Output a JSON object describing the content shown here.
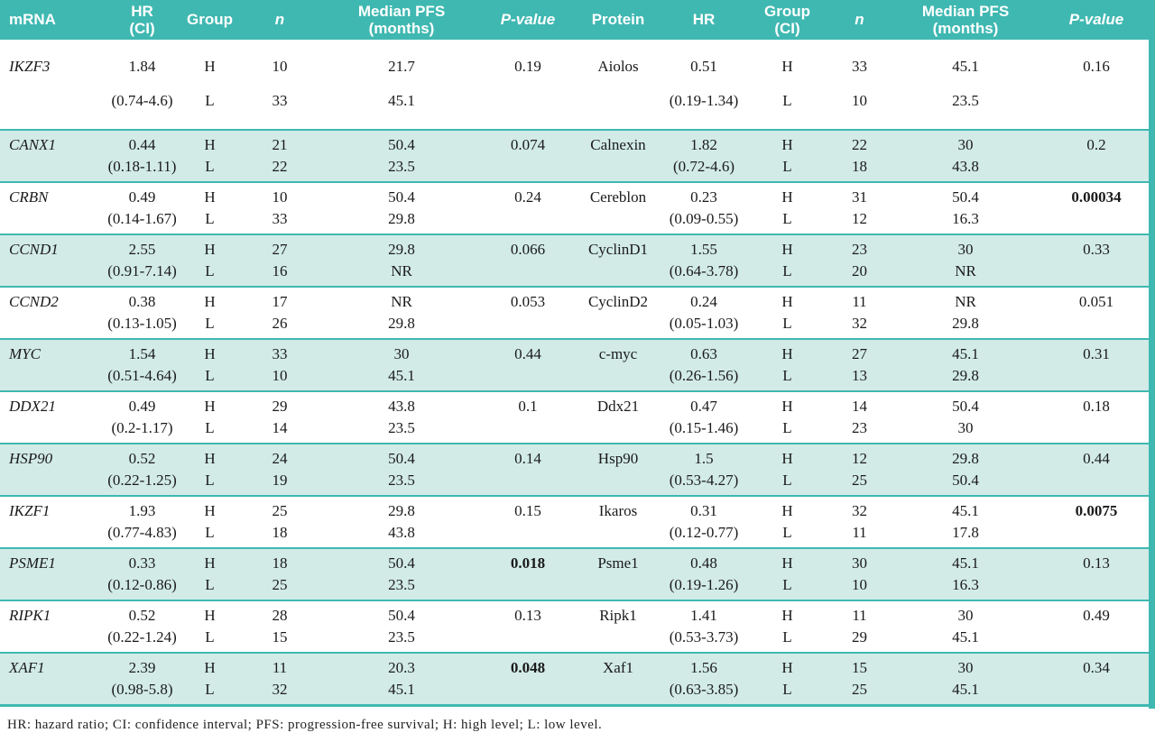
{
  "colors": {
    "teal": "#3FB8B1",
    "row_alt": "#D2EBE7",
    "header_text": "#FFFFFF",
    "body_text": "#1A1A1A"
  },
  "table": {
    "headers": {
      "mrna": "mRNA",
      "hr": "HR",
      "ci": "(CI)",
      "group": "Group",
      "n": "n",
      "pfs": "Median PFS (months)",
      "pvalue": "P-value",
      "protein": "Protein",
      "hr2": "HR",
      "group2": "Group",
      "ci2": "(CI)",
      "n2": "n",
      "pfs2": "Median PFS (months)",
      "pvalue2": "P-value"
    },
    "rows": [
      {
        "gene": "IKZF3",
        "hr": "1.84",
        "ci": "(0.74-4.6)",
        "g1": "H",
        "g2": "L",
        "n1": "10",
        "n2": "33",
        "pfs1": "21.7",
        "pfs2": "45.1",
        "p": "0.19",
        "p_bold": false,
        "protein": "Aiolos",
        "phr": "0.51",
        "pci": "(0.19-1.34)",
        "pg1": "H",
        "pg2": "L",
        "pn1": "33",
        "pn2": "10",
        "ppfs1": "45.1",
        "ppfs2": "23.5",
        "pp": "0.16",
        "pp_bold": false
      },
      {
        "gene": "CANX1",
        "hr": "0.44",
        "ci": "(0.18-1.11)",
        "g1": "H",
        "g2": "L",
        "n1": "21",
        "n2": "22",
        "pfs1": "50.4",
        "pfs2": "23.5",
        "p": "0.074",
        "p_bold": false,
        "protein": "Calnexin",
        "phr": "1.82",
        "pci": "(0.72-4.6)",
        "pg1": "H",
        "pg2": "L",
        "pn1": "22",
        "pn2": "18",
        "ppfs1": "30",
        "ppfs2": "43.8",
        "pp": "0.2",
        "pp_bold": false
      },
      {
        "gene": "CRBN",
        "hr": "0.49",
        "ci": "(0.14-1.67)",
        "g1": "H",
        "g2": "L",
        "n1": "10",
        "n2": "33",
        "pfs1": "50.4",
        "pfs2": "29.8",
        "p": "0.24",
        "p_bold": false,
        "protein": "Cereblon",
        "phr": "0.23",
        "pci": "(0.09-0.55)",
        "pg1": "H",
        "pg2": "L",
        "pn1": "31",
        "pn2": "12",
        "ppfs1": "50.4",
        "ppfs2": "16.3",
        "pp": "0.00034",
        "pp_bold": true
      },
      {
        "gene": "CCND1",
        "hr": "2.55",
        "ci": "(0.91-7.14)",
        "g1": "H",
        "g2": "L",
        "n1": "27",
        "n2": "16",
        "pfs1": "29.8",
        "pfs2": "NR",
        "p": "0.066",
        "p_bold": false,
        "protein": "CyclinD1",
        "phr": "1.55",
        "pci": "(0.64-3.78)",
        "pg1": "H",
        "pg2": "L",
        "pn1": "23",
        "pn2": "20",
        "ppfs1": "30",
        "ppfs2": "NR",
        "pp": "0.33",
        "pp_bold": false
      },
      {
        "gene": "CCND2",
        "hr": "0.38",
        "ci": "(0.13-1.05)",
        "g1": "H",
        "g2": "L",
        "n1": "17",
        "n2": "26",
        "pfs1": "NR",
        "pfs2": "29.8",
        "p": "0.053",
        "p_bold": false,
        "protein": "CyclinD2",
        "phr": "0.24",
        "pci": "(0.05-1.03)",
        "pg1": "H",
        "pg2": "L",
        "pn1": "11",
        "pn2": "32",
        "ppfs1": "NR",
        "ppfs2": "29.8",
        "pp": "0.051",
        "pp_bold": false
      },
      {
        "gene": "MYC",
        "hr": "1.54",
        "ci": "(0.51-4.64)",
        "g1": "H",
        "g2": "L",
        "n1": "33",
        "n2": "10",
        "pfs1": "30",
        "pfs2": "45.1",
        "p": "0.44",
        "p_bold": false,
        "protein": "c-myc",
        "phr": "0.63",
        "pci": "(0.26-1.56)",
        "pg1": "H",
        "pg2": "L",
        "pn1": "27",
        "pn2": "13",
        "ppfs1": "45.1",
        "ppfs2": "29.8",
        "pp": "0.31",
        "pp_bold": false
      },
      {
        "gene": "DDX21",
        "hr": "0.49",
        "ci": "(0.2-1.17)",
        "g1": "H",
        "g2": "L",
        "n1": "29",
        "n2": "14",
        "pfs1": "43.8",
        "pfs2": "23.5",
        "p": "0.1",
        "p_bold": false,
        "protein": "Ddx21",
        "phr": "0.47",
        "pci": "(0.15-1.46)",
        "pg1": "H",
        "pg2": "L",
        "pn1": "14",
        "pn2": "23",
        "ppfs1": "50.4",
        "ppfs2": "30",
        "pp": "0.18",
        "pp_bold": false
      },
      {
        "gene": "HSP90",
        "hr": "0.52",
        "ci": "(0.22-1.25)",
        "g1": "H",
        "g2": "L",
        "n1": "24",
        "n2": "19",
        "pfs1": "50.4",
        "pfs2": "23.5",
        "p": "0.14",
        "p_bold": false,
        "protein": "Hsp90",
        "phr": "1.5",
        "pci": "(0.53-4.27)",
        "pg1": "H",
        "pg2": "L",
        "pn1": "12",
        "pn2": "25",
        "ppfs1": "29.8",
        "ppfs2": "50.4",
        "pp": "0.44",
        "pp_bold": false
      },
      {
        "gene": "IKZF1",
        "hr": "1.93",
        "ci": "(0.77-4.83)",
        "g1": "H",
        "g2": "L",
        "n1": "25",
        "n2": "18",
        "pfs1": "29.8",
        "pfs2": "43.8",
        "p": "0.15",
        "p_bold": false,
        "protein": "Ikaros",
        "phr": "0.31",
        "pci": "(0.12-0.77)",
        "pg1": "H",
        "pg2": "L",
        "pn1": "32",
        "pn2": "11",
        "ppfs1": "45.1",
        "ppfs2": "17.8",
        "pp": "0.0075",
        "pp_bold": true
      },
      {
        "gene": "PSME1",
        "hr": "0.33",
        "ci": "(0.12-0.86)",
        "g1": "H",
        "g2": "L",
        "n1": "18",
        "n2": "25",
        "pfs1": "50.4",
        "pfs2": "23.5",
        "p": "0.018",
        "p_bold": true,
        "protein": "Psme1",
        "phr": "0.48",
        "pci": "(0.19-1.26)",
        "pg1": "H",
        "pg2": "L",
        "pn1": "30",
        "pn2": "10",
        "ppfs1": "45.1",
        "ppfs2": "16.3",
        "pp": "0.13",
        "pp_bold": false
      },
      {
        "gene": "RIPK1",
        "hr": "0.52",
        "ci": "(0.22-1.24)",
        "g1": "H",
        "g2": "L",
        "n1": "28",
        "n2": "15",
        "pfs1": "50.4",
        "pfs2": "23.5",
        "p": "0.13",
        "p_bold": false,
        "protein": "Ripk1",
        "phr": "1.41",
        "pci": "(0.53-3.73)",
        "pg1": "H",
        "pg2": "L",
        "pn1": "11",
        "pn2": "29",
        "ppfs1": "30",
        "ppfs2": "45.1",
        "pp": "0.49",
        "pp_bold": false
      },
      {
        "gene": "XAF1",
        "hr": "2.39",
        "ci": "(0.98-5.8)",
        "g1": "H",
        "g2": "L",
        "n1": "11",
        "n2": "32",
        "pfs1": "20.3",
        "pfs2": "45.1",
        "p": "0.048",
        "p_bold": true,
        "protein": "Xaf1",
        "phr": "1.56",
        "pci": "(0.63-3.85)",
        "pg1": "H",
        "pg2": "L",
        "pn1": "15",
        "pn2": "25",
        "ppfs1": "30",
        "ppfs2": "45.1",
        "pp": "0.34",
        "pp_bold": false
      }
    ],
    "footnote": "HR: hazard ratio; CI: confidence interval; PFS: progression-free survival; H: high level; L: low level."
  }
}
